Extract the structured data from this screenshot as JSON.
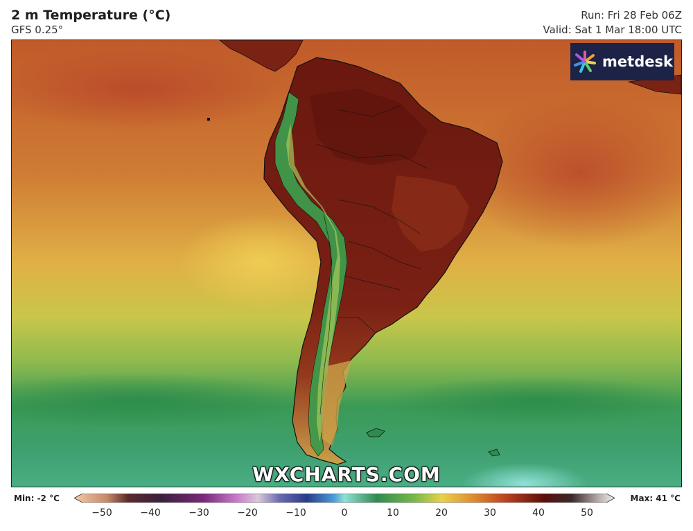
{
  "header": {
    "title": "2 m Temperature (°C)",
    "model": "GFS 0.25°",
    "run": "Run: Fri 28 Feb 06Z",
    "valid": "Valid: Sat 1 Mar 18:00 UTC"
  },
  "brand": {
    "name": "metdesk",
    "icon": "metdesk-burst-icon"
  },
  "watermark": "WXCHARTS.COM",
  "legend": {
    "min_label": "Min: -2 °C",
    "max_label": "Max: 41 °C",
    "ticks": [
      "−50",
      "−40",
      "−30",
      "−20",
      "−10",
      "0",
      "10",
      "20",
      "30",
      "40",
      "50"
    ],
    "range": [
      -50,
      50
    ]
  },
  "colors": {
    "brand_bg": "#1d2346",
    "ocean_warm": "#c86a2f",
    "ocean_mid": "#e2b24c",
    "ocean_cool": "#3fa064",
    "land_hot": "#6e1a10",
    "andes": "#3f9a4a"
  }
}
